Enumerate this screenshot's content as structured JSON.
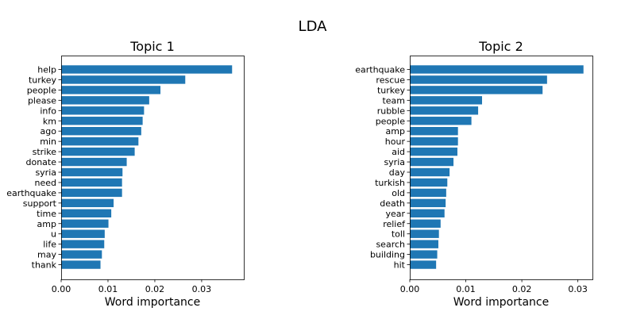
{
  "figure": {
    "suptitle": "LDA"
  },
  "chart_data": [
    {
      "type": "bar",
      "orientation": "horizontal",
      "title": "Topic 1",
      "xlabel": "Word importance",
      "ylabel": "",
      "xlim": [
        0,
        0.039
      ],
      "xticks": [
        0.0,
        0.01,
        0.02,
        0.03
      ],
      "xtick_labels": [
        "0.00",
        "0.01",
        "0.02",
        "0.03"
      ],
      "color": "#1f77b4",
      "categories": [
        "help",
        "turkey",
        "people",
        "please",
        "info",
        "km",
        "ago",
        "min",
        "strike",
        "donate",
        "syria",
        "need",
        "earthquake",
        "support",
        "time",
        "amp",
        "u",
        "life",
        "may",
        "thank"
      ],
      "values": [
        0.0365,
        0.0265,
        0.0212,
        0.0188,
        0.0177,
        0.0174,
        0.0171,
        0.0165,
        0.0157,
        0.014,
        0.0131,
        0.013,
        0.013,
        0.0112,
        0.0107,
        0.0101,
        0.0093,
        0.0092,
        0.0087,
        0.0084
      ]
    },
    {
      "type": "bar",
      "orientation": "horizontal",
      "title": "Topic 2",
      "xlabel": "Word importance",
      "ylabel": "",
      "xlim": [
        0,
        0.0326
      ],
      "xticks": [
        0.0,
        0.01,
        0.02,
        0.03
      ],
      "xtick_labels": [
        "0.00",
        "0.01",
        "0.02",
        "0.03"
      ],
      "color": "#1f77b4",
      "categories": [
        "earthquake",
        "rescue",
        "turkey",
        "team",
        "rubble",
        "people",
        "amp",
        "hour",
        "aid",
        "syria",
        "day",
        "turkish",
        "old",
        "death",
        "year",
        "relief",
        "toll",
        "search",
        "building",
        "hit"
      ],
      "values": [
        0.031,
        0.0245,
        0.0237,
        0.0129,
        0.0122,
        0.011,
        0.0086,
        0.0086,
        0.0085,
        0.0078,
        0.0071,
        0.0067,
        0.0065,
        0.0064,
        0.0062,
        0.0055,
        0.0052,
        0.0051,
        0.0049,
        0.0047
      ]
    }
  ]
}
